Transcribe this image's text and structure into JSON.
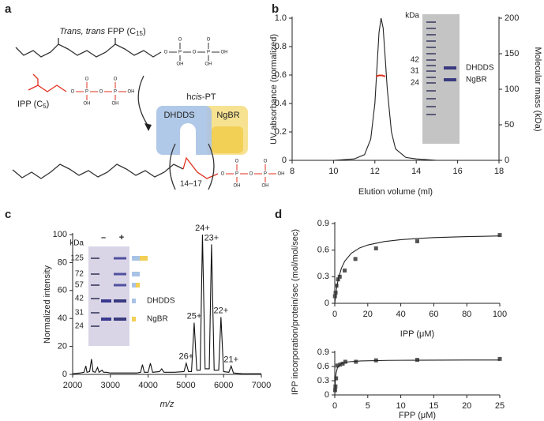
{
  "panels": [
    "a",
    "b",
    "c",
    "d"
  ],
  "diagram": {
    "fpp_label": [
      "Trans, trans",
      " FPP (C",
      "15",
      ")"
    ],
    "ipp_label": [
      "IPP (C",
      "5",
      ")"
    ],
    "enzyme_label": [
      "h",
      "cis",
      "-PT"
    ],
    "subunits": [
      "DHDDS",
      "NgBR"
    ],
    "repeat": "14–17",
    "atoms": {
      "p": "P",
      "o": "O",
      "oh": "OH"
    }
  },
  "chart_data": [
    {
      "type": "line",
      "xlabel": "Elution volume (ml)",
      "ylabel": "UV absorbance (normalized)",
      "y2label": "Molecular mass (kDa)",
      "xlim": [
        8,
        18
      ],
      "xticks": [
        8,
        10,
        12,
        14,
        16,
        18
      ],
      "ylim": [
        0,
        1
      ],
      "yticks": [
        0,
        0.2,
        0.4,
        0.6,
        0.8,
        {
          "value": 1,
          "label": "1.0"
        }
      ],
      "y2lim": [
        0,
        200
      ],
      "y2ticks": [
        0,
        50,
        100,
        150,
        200
      ],
      "series": [
        {
          "color": "#222222",
          "x": [
            8,
            9,
            10,
            11,
            11.5,
            11.8,
            12.0,
            12.1,
            12.2,
            12.3,
            12.4,
            12.5,
            12.6,
            12.8,
            13.0,
            13.5,
            14,
            15,
            16,
            17,
            18
          ],
          "values": [
            0,
            0,
            0,
            0.01,
            0.04,
            0.15,
            0.4,
            0.65,
            0.9,
            1.0,
            0.93,
            0.72,
            0.5,
            0.2,
            0.08,
            0.02,
            0.01,
            0,
            0,
            0,
            0
          ]
        },
        {
          "color": "#e0301e",
          "axis": "y2",
          "x": [
            12.05,
            12.2,
            12.35,
            12.5
          ],
          "values": [
            118,
            119.5,
            119.5,
            118
          ]
        }
      ],
      "inset": {
        "unit": "kDa",
        "markers": [
          42,
          31,
          24
        ],
        "bands": [
          "DHDDS",
          "NgBR"
        ]
      }
    },
    {
      "type": "line",
      "xlabel": "m/z",
      "ylabel": "Normalized intensity",
      "xlim": [
        2000,
        7000
      ],
      "xticks": [
        2000,
        3000,
        4000,
        5000,
        6000,
        7000
      ],
      "ylim": [
        0,
        100
      ],
      "yticks": [
        0,
        20,
        40,
        60,
        80,
        100
      ],
      "series": [
        {
          "color": "#111111",
          "x": [
            2000,
            2200,
            2300,
            2350,
            2380,
            2450,
            2500,
            2540,
            2600,
            2660,
            2700,
            2780,
            2820,
            2900,
            3000,
            3100,
            3300,
            3500,
            3700,
            3800,
            3850,
            3900,
            4000,
            4060,
            4120,
            4300,
            4360,
            4420,
            4700,
            4950,
            5010,
            5070,
            5150,
            5220,
            5290,
            5380,
            5440,
            5510,
            5620,
            5680,
            5750,
            5870,
            5930,
            6000,
            6140,
            6200,
            6260,
            6500,
            7000
          ],
          "values": [
            0.5,
            1,
            1.5,
            6,
            1.5,
            2,
            11,
            2,
            1.5,
            5,
            1.5,
            3,
            1.5,
            1.5,
            1,
            1,
            1,
            1,
            1,
            1.5,
            7,
            1.5,
            1.5,
            8,
            1.5,
            2,
            4,
            1.5,
            1.5,
            2,
            8,
            2,
            2,
            37,
            3,
            3,
            100,
            4,
            4,
            93,
            3,
            3,
            41,
            2,
            1.5,
            6,
            1,
            0.5,
            0.5
          ]
        }
      ],
      "peak_labels": [
        {
          "label": "26+",
          "x": 5010,
          "y": 8
        },
        {
          "label": "25+",
          "x": 5220,
          "y": 37
        },
        {
          "label": "24+",
          "x": 5440,
          "y": 100
        },
        {
          "label": "23+",
          "x": 5680,
          "y": 93
        },
        {
          "label": "22+",
          "x": 5930,
          "y": 41
        },
        {
          "label": "21+",
          "x": 6200,
          "y": 6
        }
      ],
      "inset": {
        "unit": "kDa",
        "lanes": [
          "–",
          "+"
        ],
        "markers": [
          125,
          72,
          57,
          42,
          31,
          24
        ],
        "bands": [
          "DHDDS",
          "NgBR"
        ]
      }
    },
    {
      "type": "scatter",
      "xlabel": "IPP (μM)",
      "ylabel": "IPP incorporation/protein/sec (mol/mol/sec)",
      "xlim": [
        0,
        100
      ],
      "xticks": [
        0,
        20,
        40,
        60,
        80,
        100
      ],
      "ylim": [
        0,
        0.9
      ],
      "yticks": [
        0,
        0.3,
        0.6,
        0.9
      ],
      "series": [
        {
          "color": "#555555",
          "style": "points",
          "x": [
            0.1,
            0.5,
            1,
            2,
            3,
            6,
            12.5,
            25,
            50,
            100
          ],
          "values": [
            0.08,
            0.12,
            0.2,
            0.27,
            0.3,
            0.37,
            0.5,
            0.62,
            0.7,
            0.77
          ]
        },
        {
          "color": "#222222",
          "style": "line",
          "x": [
            0,
            1,
            2,
            4,
            6,
            10,
            15,
            20,
            30,
            40,
            50,
            60,
            70,
            80,
            90,
            100
          ],
          "values": [
            0,
            0.158,
            0.263,
            0.395,
            0.474,
            0.564,
            0.624,
            0.658,
            0.697,
            0.718,
            0.731,
            0.741,
            0.747,
            0.752,
            0.756,
            0.76
          ]
        }
      ]
    },
    {
      "type": "scatter",
      "xlabel": "FPP (μM)",
      "xlim": [
        0,
        25
      ],
      "xticks": [
        0,
        5,
        10,
        15,
        20,
        25
      ],
      "ylim": [
        0,
        0.9
      ],
      "yticks": [
        0,
        0.3,
        0.6,
        0.9
      ],
      "series": [
        {
          "color": "#555555",
          "style": "points",
          "x": [
            0.05,
            0.1,
            0.2,
            0.4,
            0.8,
            1.2,
            1.6,
            3.2,
            6.25,
            12.5,
            25
          ],
          "values": [
            0.1,
            0.18,
            0.35,
            0.62,
            0.64,
            0.66,
            0.7,
            0.7,
            0.73,
            0.74,
            0.76
          ]
        },
        {
          "color": "#222222",
          "style": "line",
          "x": [
            0,
            0.1,
            0.2,
            0.4,
            0.6,
            1,
            2,
            4,
            8,
            12,
            16,
            20,
            25
          ],
          "values": [
            0,
            0.336,
            0.4625,
            0.569,
            0.617,
            0.661,
            0.698,
            0.718,
            0.729,
            0.733,
            0.734,
            0.736,
            0.736
          ]
        }
      ]
    }
  ]
}
